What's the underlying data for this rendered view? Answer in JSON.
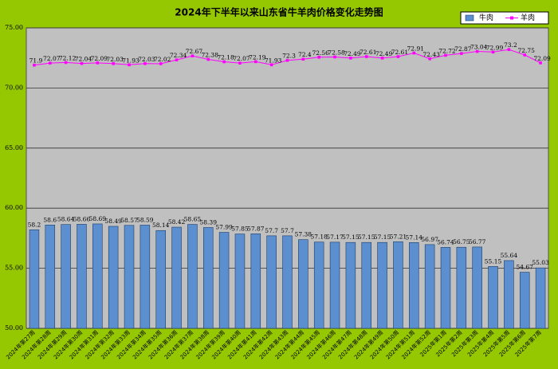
{
  "chart_data": {
    "type": "bar_line",
    "title": "2024年下半年以来山东省牛羊肉价格变化走势图",
    "categories": [
      "2024年第27周",
      "2024年第28周",
      "2024年第29周",
      "2024年第30周",
      "2024年第31周",
      "2024年第32周",
      "2024年第33周",
      "2024年第34周",
      "2024年第35周",
      "2024年第36周",
      "2024年第37周",
      "2024年第38周",
      "2024年第39周",
      "2024年第40周",
      "2024年第41周",
      "2024年第42周",
      "2024年第43周",
      "2024年第44周",
      "2024年第45周",
      "2024年第46周",
      "2024年第47周",
      "2024年第48周",
      "2024年第49周",
      "2024年第50周",
      "2024年第51周",
      "2024年第52周",
      "2025年第1周",
      "2025年第2周",
      "2025年第3周",
      "2025年第4周",
      "2025年第5周",
      "2025年第6周",
      "2025年第7周"
    ],
    "series": [
      {
        "name": "牛肉",
        "type": "bar",
        "color": "#5b8fd0",
        "values": [
          58.2,
          58.6,
          58.64,
          58.66,
          58.69,
          58.49,
          58.57,
          58.59,
          58.14,
          58.42,
          58.65,
          58.39,
          57.99,
          57.85,
          57.87,
          57.7,
          57.7,
          57.38,
          57.18,
          57.17,
          57.15,
          57.15,
          57.15,
          57.21,
          57.14,
          56.97,
          56.74,
          56.75,
          56.77,
          55.15,
          55.64,
          54.67,
          55.03
        ]
      },
      {
        "name": "羊肉",
        "type": "line",
        "color": "#ff00ff",
        "values": [
          71.9,
          72.07,
          72.12,
          72.04,
          72.09,
          72.03,
          71.93,
          72.03,
          72.02,
          72.34,
          72.67,
          72.38,
          72.18,
          72.07,
          72.19,
          71.93,
          72.3,
          72.4,
          72.56,
          72.58,
          72.49,
          72.61,
          72.49,
          72.61,
          72.91,
          72.43,
          72.72,
          72.87,
          73.04,
          72.99,
          73.2,
          72.75,
          72.09
        ]
      }
    ],
    "ylim": [
      50,
      75
    ],
    "yticks": [
      {
        "value": 50,
        "label": "50.00"
      },
      {
        "value": 55,
        "label": "55.00"
      },
      {
        "value": 60,
        "label": "60.00"
      },
      {
        "value": 65,
        "label": "65.00"
      },
      {
        "value": 70,
        "label": "70.00"
      },
      {
        "value": 75,
        "label": "75.00"
      }
    ],
    "grid": true
  }
}
